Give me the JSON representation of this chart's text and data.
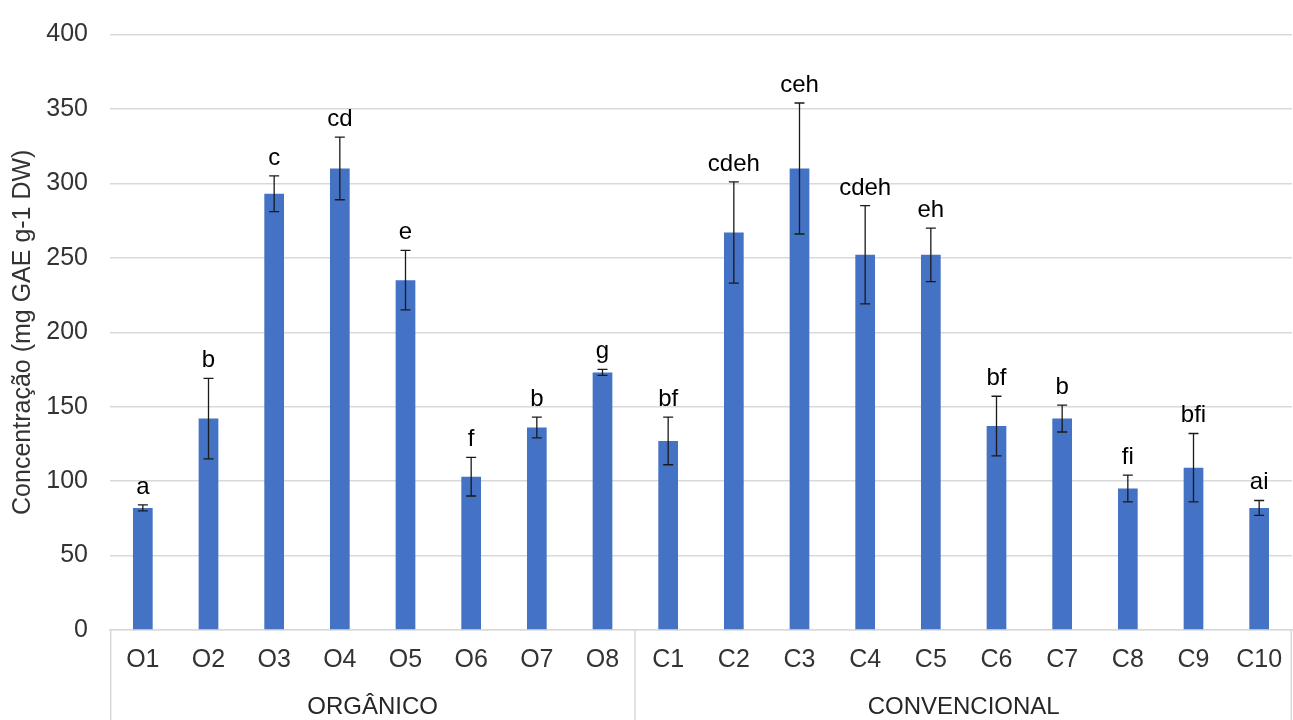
{
  "chart_data": {
    "type": "bar",
    "ylabel": "Concentração (mg GAE g-1 DW)",
    "categories": [
      "O1",
      "O2",
      "O3",
      "O4",
      "O5",
      "O6",
      "O7",
      "O8",
      "C1",
      "C2",
      "C3",
      "C4",
      "C5",
      "C6",
      "C7",
      "C8",
      "C9",
      "C10"
    ],
    "values": [
      82,
      142,
      293,
      310,
      235,
      103,
      136,
      173,
      127,
      267,
      310,
      252,
      252,
      137,
      142,
      95,
      109,
      82
    ],
    "errors": [
      2,
      27,
      12,
      21,
      20,
      13,
      7,
      2,
      16,
      34,
      44,
      33,
      18,
      20,
      9,
      9,
      23,
      5
    ],
    "color": "#4472c4",
    "ylim": [
      0,
      400
    ],
    "yticks": [
      0,
      50,
      100,
      150,
      200,
      250,
      300,
      350,
      400
    ],
    "grid": "y",
    "annotations": [
      {
        "text": "a",
        "x": "O1",
        "y": 84
      },
      {
        "text": "b",
        "x": "O2",
        "y": 169
      },
      {
        "text": "c",
        "x": "O3",
        "y": 305
      },
      {
        "text": "cd",
        "x": "O4",
        "y": 331
      },
      {
        "text": "e",
        "x": "O5",
        "y": 255
      },
      {
        "text": "f",
        "x": "O6",
        "y": 116
      },
      {
        "text": "b",
        "x": "O7",
        "y": 143
      },
      {
        "text": "g",
        "x": "O8",
        "y": 175
      },
      {
        "text": "bf",
        "x": "C1",
        "y": 143
      },
      {
        "text": "cdeh",
        "x": "C2",
        "y": 301
      },
      {
        "text": "ceh",
        "x": "C3",
        "y": 354
      },
      {
        "text": "cdeh",
        "x": "C4",
        "y": 285
      },
      {
        "text": "eh",
        "x": "C5",
        "y": 270
      },
      {
        "text": "bf",
        "x": "C6",
        "y": 157
      },
      {
        "text": "b",
        "x": "C7",
        "y": 151
      },
      {
        "text": "fi",
        "x": "C8",
        "y": 104
      },
      {
        "text": "bfi",
        "x": "C9",
        "y": 132
      },
      {
        "text": "ai",
        "x": "C10",
        "y": 87
      },
      "ORGÂNICO",
      "CONVENCIONAL"
    ]
  }
}
